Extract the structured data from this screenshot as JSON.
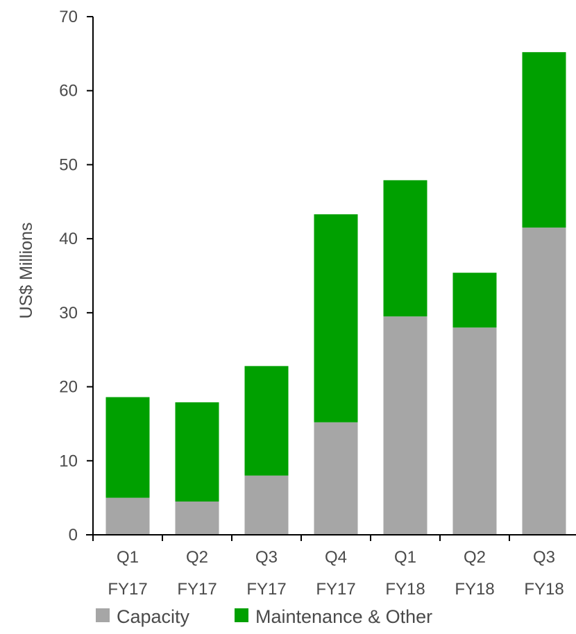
{
  "chart_data": {
    "type": "bar",
    "stacked": true,
    "title": "",
    "xlabel": "",
    "ylabel": "US$ Millions",
    "ylim": [
      0,
      70
    ],
    "yticks": [
      0,
      10,
      20,
      30,
      40,
      50,
      60,
      70
    ],
    "grid": false,
    "legend_position": "bottom",
    "categories": [
      [
        "Q1",
        "FY17"
      ],
      [
        "Q2",
        "FY17"
      ],
      [
        "Q3",
        "FY17"
      ],
      [
        "Q4",
        "FY17"
      ],
      [
        "Q1",
        "FY18"
      ],
      [
        "Q2",
        "FY18"
      ],
      [
        "Q3",
        "FY18"
      ]
    ],
    "series": [
      {
        "name": "Capacity",
        "color": "#a6a6a6",
        "values": [
          5.0,
          4.5,
          8.0,
          15.2,
          29.5,
          28.0,
          41.5
        ]
      },
      {
        "name": "Maintenance & Other",
        "color": "#00a000",
        "values": [
          13.6,
          13.4,
          14.8,
          28.1,
          18.4,
          7.4,
          23.7
        ]
      }
    ],
    "axis_color": "#000000",
    "text_color": "#4a4a4a"
  }
}
